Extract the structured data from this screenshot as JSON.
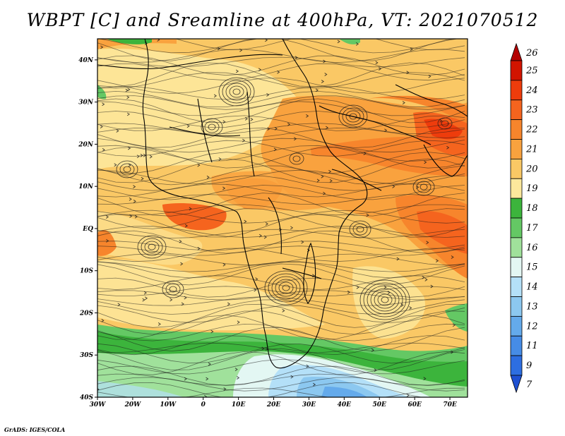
{
  "title": "WBPT [C] and Sreamline at 400hPa, VT: 2021070512",
  "credit": "GrADS: IGES/COLA",
  "map": {
    "lon_range": [
      -30,
      75
    ],
    "lat_range": [
      -40,
      45
    ],
    "lon_ticks": [
      {
        "value": -30,
        "label": "30W"
      },
      {
        "value": -20,
        "label": "20W"
      },
      {
        "value": -10,
        "label": "10W"
      },
      {
        "value": 0,
        "label": "0"
      },
      {
        "value": 10,
        "label": "10E"
      },
      {
        "value": 20,
        "label": "20E"
      },
      {
        "value": 30,
        "label": "30E"
      },
      {
        "value": 40,
        "label": "40E"
      },
      {
        "value": 50,
        "label": "50E"
      },
      {
        "value": 60,
        "label": "60E"
      },
      {
        "value": 70,
        "label": "70E"
      }
    ],
    "lat_ticks": [
      {
        "value": 40,
        "label": "40N"
      },
      {
        "value": 30,
        "label": "30N"
      },
      {
        "value": 20,
        "label": "20N"
      },
      {
        "value": 10,
        "label": "10N"
      },
      {
        "value": 0,
        "label": "EQ"
      },
      {
        "value": -10,
        "label": "10S"
      },
      {
        "value": -20,
        "label": "20S"
      },
      {
        "value": -30,
        "label": "30S"
      },
      {
        "value": -40,
        "label": "40S"
      }
    ]
  },
  "colorbar": {
    "levels": [
      {
        "label": "26",
        "color": "#b40000"
      },
      {
        "label": "25",
        "color": "#d21400"
      },
      {
        "label": "24",
        "color": "#ee3c0c"
      },
      {
        "label": "23",
        "color": "#f5641e"
      },
      {
        "label": "22",
        "color": "#f7852c"
      },
      {
        "label": "21",
        "color": "#f9a23e"
      },
      {
        "label": "20",
        "color": "#fac865"
      },
      {
        "label": "19",
        "color": "#fde89c"
      },
      {
        "label": "18",
        "color": "#3cb43c"
      },
      {
        "label": "17",
        "color": "#64c864"
      },
      {
        "label": "16",
        "color": "#a0e19b"
      },
      {
        "label": "15",
        "color": "#e3f7f3"
      },
      {
        "label": "14",
        "color": "#b4e0f8"
      },
      {
        "label": "13",
        "color": "#8cc8f0"
      },
      {
        "label": "12",
        "color": "#64aaeb"
      },
      {
        "label": "11",
        "color": "#468ce6"
      },
      {
        "label": "9",
        "color": "#2d6ee1"
      },
      {
        "label": "7",
        "color": "#1e50d2"
      }
    ]
  }
}
